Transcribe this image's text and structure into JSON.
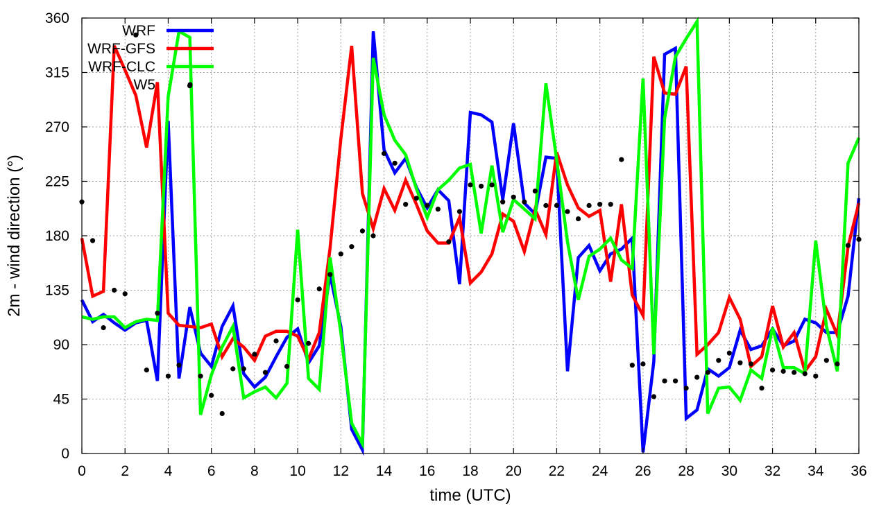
{
  "chart_data": {
    "type": "line",
    "xlabel": "time (UTC)",
    "ylabel": "2m - wind direction (°)",
    "xlim": [
      0,
      36
    ],
    "ylim": [
      0,
      360
    ],
    "xticks": [
      0,
      2,
      4,
      6,
      8,
      10,
      12,
      14,
      16,
      18,
      20,
      22,
      24,
      26,
      28,
      30,
      32,
      34,
      36
    ],
    "yticks": [
      0,
      45,
      90,
      135,
      180,
      225,
      270,
      315,
      360
    ],
    "grid": true,
    "legend_position": "top-left",
    "series": [
      {
        "name": "WRF",
        "color": "#0000ff",
        "style": "line",
        "x": [
          0,
          0.5,
          1,
          1.5,
          2,
          2.5,
          3,
          3.5,
          4,
          4.5,
          5,
          5.5,
          6,
          6.5,
          7,
          7.5,
          8,
          8.5,
          9,
          9.5,
          10,
          10.5,
          11,
          11.5,
          12,
          12.5,
          13,
          13.5,
          14,
          14.5,
          15,
          15.5,
          16,
          16.5,
          17,
          17.5,
          18,
          18.5,
          19,
          19.5,
          20,
          20.5,
          21,
          21.5,
          22,
          22.5,
          23,
          23.5,
          24,
          24.5,
          25,
          25.5,
          26,
          26.5,
          27,
          27.5,
          28,
          28.5,
          29,
          29.5,
          30,
          30.5,
          31,
          31.5,
          32,
          32.5,
          33,
          33.5,
          34,
          34.5,
          35,
          35.5,
          36
        ],
        "y": [
          127,
          109,
          115,
          108,
          102,
          108,
          110,
          60,
          275,
          62,
          121,
          83,
          72,
          105,
          122,
          66,
          55,
          63,
          80,
          96,
          103,
          75,
          89,
          148,
          105,
          20,
          3,
          349,
          251,
          232,
          244,
          220,
          203,
          218,
          209,
          140,
          282,
          280,
          274,
          210,
          273,
          207,
          198,
          245,
          244,
          68,
          162,
          172,
          151,
          165,
          169,
          178,
          1,
          76,
          330,
          335,
          29,
          36,
          70,
          64,
          71,
          102,
          86,
          89,
          103,
          89,
          93,
          111,
          108,
          100,
          100,
          130,
          211
        ]
      },
      {
        "name": "WRF-GFS",
        "color": "#ff0000",
        "style": "line",
        "x": [
          0,
          0.5,
          1,
          1.5,
          2,
          2.5,
          3,
          3.5,
          4,
          4.5,
          5,
          5.5,
          6,
          6.5,
          7,
          7.5,
          8,
          8.5,
          9,
          9.5,
          10,
          10.5,
          11,
          11.5,
          12,
          12.5,
          13,
          13.5,
          14,
          14.5,
          15,
          15.5,
          16,
          16.5,
          17,
          17.5,
          18,
          18.5,
          19,
          19.5,
          20,
          20.5,
          21,
          21.5,
          22,
          22.5,
          23,
          23.5,
          24,
          24.5,
          25,
          25.5,
          26,
          26.5,
          27,
          27.5,
          28,
          28.5,
          29,
          29.5,
          30,
          30.5,
          31,
          31.5,
          32,
          32.5,
          33,
          33.5,
          34,
          34.5,
          35,
          35.5,
          36
        ],
        "y": [
          178,
          130,
          134,
          337,
          317,
          296,
          253,
          307,
          116,
          106,
          105,
          104,
          107,
          80,
          95,
          88,
          77,
          97,
          101,
          101,
          97,
          78,
          100,
          170,
          260,
          337,
          215,
          186,
          219,
          201,
          226,
          206,
          184,
          174,
          174,
          195,
          141,
          150,
          165,
          198,
          192,
          167,
          202,
          181,
          249,
          222,
          203,
          196,
          201,
          142,
          206,
          131,
          114,
          328,
          298,
          297,
          320,
          82,
          90,
          100,
          129,
          111,
          72,
          80,
          122,
          88,
          100,
          68,
          80,
          119,
          98,
          171,
          207
        ]
      },
      {
        "name": "WRF-CLC",
        "color": "#00ff00",
        "style": "line",
        "x": [
          0,
          0.5,
          1,
          1.5,
          2,
          2.5,
          3,
          3.5,
          4,
          4.5,
          5,
          5.5,
          6,
          6.5,
          7,
          7.5,
          8,
          8.5,
          9,
          9.5,
          10,
          10.5,
          11,
          11.5,
          12,
          12.5,
          13,
          13.5,
          14,
          14.5,
          15,
          15.5,
          16,
          16.5,
          17,
          17.5,
          18,
          18.5,
          19,
          19.5,
          20,
          20.5,
          21,
          21.5,
          22,
          22.5,
          23,
          23.5,
          24,
          24.5,
          25,
          25.5,
          26,
          26.5,
          27,
          27.5,
          28,
          28.5,
          29,
          29.5,
          30,
          30.5,
          31,
          31.5,
          32,
          32.5,
          33,
          33.5,
          34,
          34.5,
          35,
          35.5,
          36
        ],
        "y": [
          113,
          111,
          113,
          113,
          104,
          109,
          111,
          110,
          295,
          349,
          344,
          32,
          65,
          88,
          105,
          46,
          51,
          55,
          46,
          58,
          185,
          62,
          53,
          162,
          100,
          25,
          8,
          327,
          280,
          259,
          247,
          219,
          195,
          218,
          226,
          236,
          239,
          182,
          238,
          183,
          210,
          202,
          194,
          306,
          243,
          175,
          127,
          163,
          169,
          178,
          160,
          153,
          310,
          82,
          277,
          328,
          343,
          357,
          33,
          54,
          55,
          44,
          69,
          62,
          104,
          71,
          71,
          66,
          176,
          105,
          68,
          240,
          261
        ]
      },
      {
        "name": "W5",
        "color": "#000000",
        "style": "points",
        "x": [
          0,
          0.5,
          1,
          1.5,
          2,
          2.5,
          3,
          3.5,
          4,
          4.5,
          5,
          5.5,
          6,
          6.5,
          7,
          7.5,
          8,
          8.5,
          9,
          9.5,
          10,
          10.5,
          11,
          11.5,
          12,
          12.5,
          13,
          13.5,
          14,
          14.5,
          15,
          15.5,
          16,
          16.5,
          17,
          17.5,
          18,
          18.5,
          19,
          19.5,
          20,
          20.5,
          21,
          21.5,
          22,
          22.5,
          23,
          23.5,
          24,
          24.5,
          25,
          25.5,
          26,
          26.5,
          27,
          27.5,
          28,
          28.5,
          29,
          29.5,
          30,
          30.5,
          31,
          31.5,
          32,
          32.5,
          33,
          33.5,
          34,
          34.5,
          35,
          35.5,
          36
        ],
        "y": [
          208,
          176,
          104,
          135,
          132,
          346,
          69,
          116,
          64,
          73,
          304,
          64,
          48,
          33,
          70,
          70,
          82,
          67,
          93,
          72,
          127,
          91,
          136,
          148,
          165,
          171,
          184,
          180,
          248,
          240,
          206,
          211,
          205,
          202,
          175,
          200,
          222,
          221,
          222,
          208,
          212,
          208,
          217,
          205,
          205,
          200,
          194,
          205,
          206,
          206,
          243,
          73,
          74,
          47,
          60,
          60,
          54,
          63,
          67,
          77,
          83,
          75,
          74,
          54,
          69,
          68,
          67,
          66,
          64,
          77,
          74,
          172,
          177
        ]
      }
    ]
  }
}
